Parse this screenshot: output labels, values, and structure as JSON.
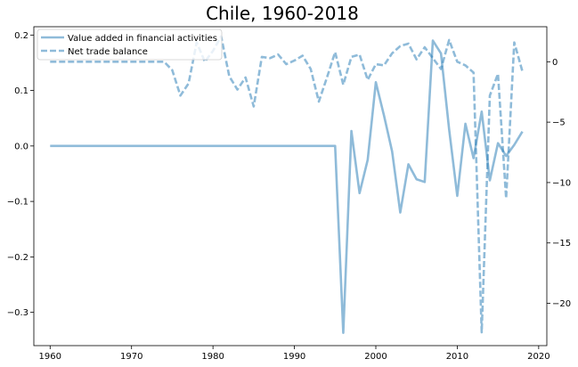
{
  "chart_data": {
    "type": "line",
    "title": "Chile, 1960-2018",
    "xlabel": "",
    "ylabel_left": "",
    "ylabel_right": "",
    "xlim": [
      1958,
      2021
    ],
    "ylim_left": [
      -0.36,
      0.215
    ],
    "ylim_right": [
      -23.5,
      2.9
    ],
    "x_ticks": [
      1960,
      1970,
      1980,
      1990,
      2000,
      2010,
      2020
    ],
    "y_left_ticks": [
      0.2,
      0.1,
      0.0,
      -0.1,
      -0.2,
      -0.3
    ],
    "y_left_tick_labels": [
      "0.2",
      "0.1",
      "0.0",
      "−0.1",
      "−0.2",
      "−0.3"
    ],
    "y_right_ticks": [
      0,
      -5,
      -10,
      -15,
      -20
    ],
    "y_right_tick_labels": [
      "0",
      "−5",
      "−10",
      "−15",
      "−20"
    ],
    "grid": false,
    "legend_position": "top-left",
    "series": [
      {
        "name": "Value added in financial activities",
        "axis": "left",
        "style": "solid",
        "color": "#1f77b4",
        "x": [
          1960,
          1961,
          1962,
          1963,
          1964,
          1965,
          1966,
          1967,
          1968,
          1969,
          1970,
          1971,
          1972,
          1973,
          1974,
          1975,
          1976,
          1977,
          1978,
          1979,
          1980,
          1981,
          1982,
          1983,
          1984,
          1985,
          1986,
          1987,
          1988,
          1989,
          1990,
          1991,
          1992,
          1993,
          1994,
          1995,
          1996,
          1997,
          1998,
          1999,
          2000,
          2001,
          2002,
          2003,
          2004,
          2005,
          2006,
          2007,
          2008,
          2009,
          2010,
          2011,
          2012,
          2013,
          2014,
          2015,
          2016,
          2017,
          2018
        ],
        "y": [
          0,
          0,
          0,
          0,
          0,
          0,
          0,
          0,
          0,
          0,
          0,
          0,
          0,
          0,
          0,
          0,
          0,
          0,
          0,
          0,
          0,
          0,
          0,
          0,
          0,
          0,
          0,
          0,
          0,
          0,
          0,
          0,
          0,
          0,
          0,
          0,
          -0.337,
          0.027,
          -0.085,
          -0.025,
          0.115,
          0.055,
          -0.01,
          -0.12,
          -0.033,
          -0.06,
          -0.065,
          0.19,
          0.167,
          0.03,
          -0.09,
          0.04,
          -0.022,
          0.062,
          -0.062,
          0.005,
          -0.018,
          0.002,
          0.026
        ]
      },
      {
        "name": "Net trade balance",
        "axis": "right",
        "style": "dashed",
        "color": "#1f77b4",
        "x": [
          1960,
          1961,
          1962,
          1963,
          1964,
          1965,
          1966,
          1967,
          1968,
          1969,
          1970,
          1971,
          1972,
          1973,
          1974,
          1975,
          1976,
          1977,
          1978,
          1979,
          1980,
          1981,
          1982,
          1983,
          1984,
          1985,
          1986,
          1987,
          1988,
          1989,
          1990,
          1991,
          1992,
          1993,
          1994,
          1995,
          1996,
          1997,
          1998,
          1999,
          2000,
          2001,
          2002,
          2003,
          2004,
          2005,
          2006,
          2007,
          2008,
          2009,
          2010,
          2011,
          2012,
          2013,
          2014,
          2015,
          2016,
          2017,
          2018
        ],
        "y": [
          0,
          0,
          0,
          0,
          0,
          0,
          0,
          0,
          0,
          0,
          0,
          0,
          0,
          0,
          0,
          -0.7,
          -2.8,
          -1.8,
          1.6,
          0.0,
          0.9,
          2.1,
          -1.2,
          -2.3,
          -1.3,
          -3.7,
          0.4,
          0.3,
          0.6,
          -0.2,
          0.1,
          0.5,
          -0.6,
          -3.3,
          -1.3,
          0.8,
          -1.9,
          0.4,
          0.6,
          -1.5,
          -0.2,
          -0.3,
          0.7,
          1.3,
          1.5,
          0.2,
          1.2,
          0.3,
          -0.6,
          1.8,
          0.0,
          -0.3,
          -0.9,
          -22.4,
          -2.8,
          -1.0,
          -11.3,
          1.6,
          -0.8
        ]
      }
    ]
  }
}
